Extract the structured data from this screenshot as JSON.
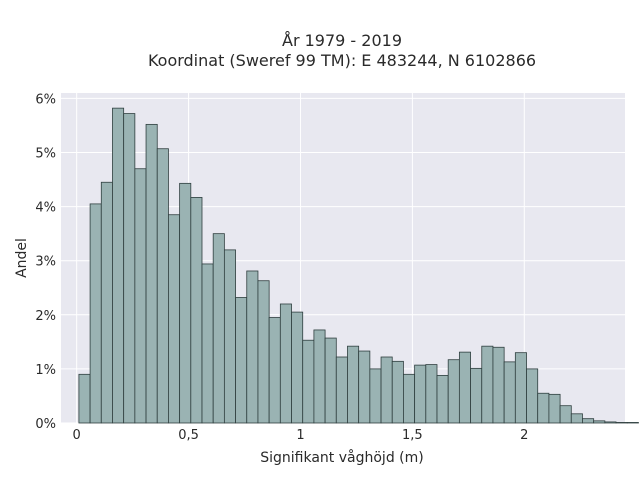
{
  "chart_data": {
    "type": "bar",
    "title_lines": [
      "År 1979 - 2019",
      "Koordinat (Sweref 99 TM): E 483244, N 6102866"
    ],
    "xlabel": "Signifikant våghöjd (m)",
    "ylabel": "Andel",
    "xlim": [
      -0.07,
      2.45
    ],
    "ylim": [
      0,
      6.1
    ],
    "x_ticks": [
      {
        "value": 0,
        "label": "0"
      },
      {
        "value": 0.5,
        "label": "0,5"
      },
      {
        "value": 1,
        "label": "1"
      },
      {
        "value": 1.5,
        "label": "1,5"
      },
      {
        "value": 2,
        "label": "2"
      }
    ],
    "y_ticks": [
      {
        "value": 0,
        "label": "0%"
      },
      {
        "value": 1,
        "label": "1%"
      },
      {
        "value": 2,
        "label": "2%"
      },
      {
        "value": 3,
        "label": "3%"
      },
      {
        "value": 4,
        "label": "4%"
      },
      {
        "value": 5,
        "label": "5%"
      },
      {
        "value": 6,
        "label": "6%"
      }
    ],
    "grid": true,
    "bin_start": 0.01,
    "bin_width": 0.05,
    "values": [
      0.9,
      4.05,
      4.45,
      5.82,
      5.72,
      4.7,
      5.52,
      5.07,
      3.85,
      4.43,
      4.17,
      2.94,
      3.5,
      3.2,
      2.32,
      2.81,
      2.63,
      1.95,
      2.2,
      2.05,
      1.53,
      1.72,
      1.57,
      1.22,
      1.42,
      1.33,
      1.0,
      1.22,
      1.14,
      0.9,
      1.07,
      1.08,
      0.88,
      1.17,
      1.31,
      1.01,
      1.42,
      1.4,
      1.13,
      1.3,
      1.0,
      0.55,
      0.53,
      0.32,
      0.17,
      0.08,
      0.04,
      0.02,
      0.01,
      0.01
    ],
    "colors": {
      "bar_fill": "#9ab3b3",
      "bar_edge": "#2f3f3f",
      "plot_background": "#e8e8f0",
      "grid": "#ffffff"
    }
  }
}
